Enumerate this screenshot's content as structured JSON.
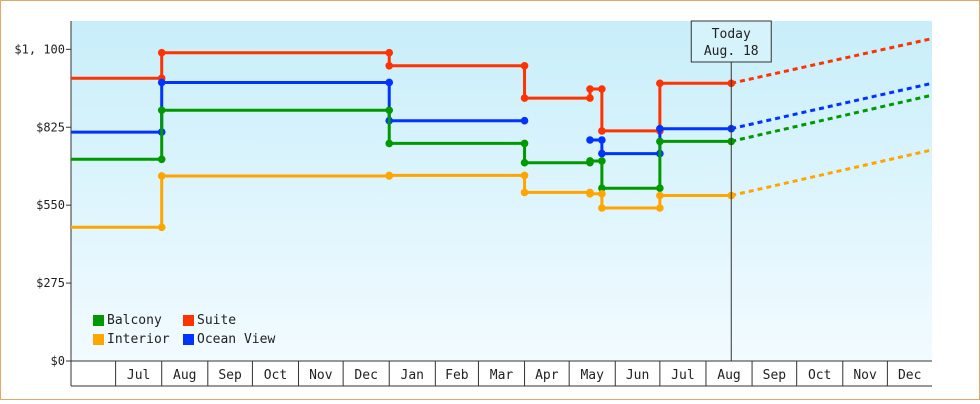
{
  "chart_data": {
    "type": "line",
    "y_ticks": [
      "$0",
      "$275",
      "$550",
      "$825",
      "$1, 100"
    ],
    "ylim": [
      0,
      1200
    ],
    "x_start": "2019-06-01",
    "x_end": "2020-12-31",
    "month_labels": [
      "Jul",
      "Aug",
      "Sep",
      "Oct",
      "Nov",
      "Dec",
      "Jan",
      "Feb",
      "Mar",
      "Apr",
      "May",
      "Jun",
      "Jul",
      "Aug",
      "Sep",
      "Oct",
      "Nov",
      "Dec"
    ],
    "month_label_dates": [
      "2019-07-01",
      "2019-08-01",
      "2019-09-01",
      "2019-10-01",
      "2019-11-01",
      "2019-12-01",
      "2020-01-01",
      "2020-02-01",
      "2020-03-01",
      "2020-04-01",
      "2020-05-01",
      "2020-06-01",
      "2020-07-01",
      "2020-08-01",
      "2020-09-01",
      "2020-10-01",
      "2020-11-01",
      "2020-12-01"
    ],
    "today": {
      "date": "2020-08-18",
      "title": "Today",
      "label": "Aug. 18"
    },
    "series": [
      {
        "name": "Suite",
        "color": "#ff3300",
        "segments": [
          [
            [
              "2019-06-01",
              998
            ],
            [
              "2019-08-01",
              998
            ]
          ],
          [
            [
              "2019-08-01",
              1088
            ],
            [
              "2020-01-01",
              1088
            ]
          ],
          [
            [
              "2020-01-01",
              1042
            ],
            [
              "2020-04-01",
              1042
            ]
          ],
          [
            [
              "2020-04-01",
              928
            ],
            [
              "2020-05-15",
              928
            ]
          ],
          [
            [
              "2020-05-15",
              960
            ],
            [
              "2020-05-23",
              960
            ]
          ],
          [
            [
              "2020-05-23",
              812
            ],
            [
              "2020-07-01",
              812
            ]
          ],
          [
            [
              "2020-07-01",
              980
            ],
            [
              "2020-08-18",
              980
            ]
          ]
        ],
        "forecast": [
          [
            "2020-08-18",
            980
          ],
          [
            "2020-12-31",
            1138
          ]
        ]
      },
      {
        "name": "Ocean View",
        "color": "#0033ff",
        "segments": [
          [
            [
              "2019-06-01",
              808
            ],
            [
              "2019-08-01",
              808
            ]
          ],
          [
            [
              "2019-08-01",
              983
            ],
            [
              "2020-01-01",
              983
            ]
          ],
          [
            [
              "2020-01-01",
              848
            ],
            [
              "2020-04-01",
              848
            ]
          ],
          [
            [
              "2020-05-15",
              780
            ],
            [
              "2020-05-23",
              780
            ]
          ],
          [
            [
              "2020-05-23",
              732
            ],
            [
              "2020-07-01",
              732
            ]
          ],
          [
            [
              "2020-07-01",
              820
            ],
            [
              "2020-08-18",
              820
            ]
          ]
        ],
        "forecast": [
          [
            "2020-08-18",
            820
          ],
          [
            "2020-12-31",
            980
          ]
        ]
      },
      {
        "name": "Balcony",
        "color": "#009900",
        "segments": [
          [
            [
              "2019-06-01",
              712
            ],
            [
              "2019-08-01",
              712
            ]
          ],
          [
            [
              "2019-08-01",
              885
            ],
            [
              "2020-01-01",
              885
            ]
          ],
          [
            [
              "2020-01-01",
              768
            ],
            [
              "2020-04-01",
              768
            ]
          ],
          [
            [
              "2020-04-01",
              700
            ],
            [
              "2020-05-15",
              700
            ]
          ],
          [
            [
              "2020-05-15",
              706
            ],
            [
              "2020-05-23",
              706
            ]
          ],
          [
            [
              "2020-05-23",
              610
            ],
            [
              "2020-07-01",
              610
            ]
          ],
          [
            [
              "2020-07-01",
              775
            ],
            [
              "2020-08-18",
              775
            ]
          ]
        ],
        "forecast": [
          [
            "2020-08-18",
            775
          ],
          [
            "2020-12-31",
            938
          ]
        ]
      },
      {
        "name": "Interior",
        "color": "#ffa500",
        "segments": [
          [
            [
              "2019-06-01",
              472
            ],
            [
              "2019-08-01",
              472
            ]
          ],
          [
            [
              "2019-08-01",
              653
            ],
            [
              "2020-01-01",
              653
            ]
          ],
          [
            [
              "2020-01-01",
              655
            ],
            [
              "2020-04-01",
              655
            ]
          ],
          [
            [
              "2020-04-01",
              595
            ],
            [
              "2020-05-15",
              595
            ]
          ],
          [
            [
              "2020-05-15",
              590
            ],
            [
              "2020-05-23",
              590
            ]
          ],
          [
            [
              "2020-05-23",
              540
            ],
            [
              "2020-07-01",
              540
            ]
          ],
          [
            [
              "2020-07-01",
              584
            ],
            [
              "2020-08-18",
              584
            ]
          ]
        ],
        "forecast": [
          [
            "2020-08-18",
            584
          ],
          [
            "2020-12-31",
            745
          ]
        ]
      }
    ],
    "legend": [
      {
        "name": "Balcony",
        "color": "#009900"
      },
      {
        "name": "Suite",
        "color": "#ff3300"
      },
      {
        "name": "Interior",
        "color": "#ffa500"
      },
      {
        "name": "Ocean View",
        "color": "#0033ff"
      }
    ]
  }
}
